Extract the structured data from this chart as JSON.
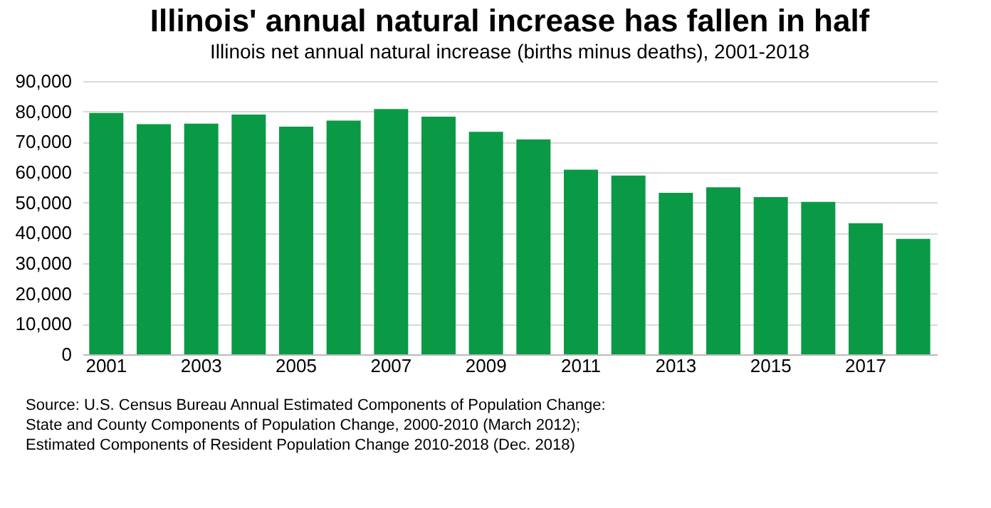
{
  "chart_data": {
    "type": "bar",
    "title": "Illinois' annual natural increase has fallen in half",
    "subtitle": "Illinois net annual natural increase (births minus deaths), 2001-2018",
    "categories": [
      "2001",
      null,
      "2003",
      null,
      "2005",
      null,
      "2007",
      null,
      "2009",
      null,
      "2011",
      null,
      "2013",
      null,
      "2015",
      null,
      "2017",
      null
    ],
    "values": [
      79500,
      75800,
      76000,
      79000,
      75000,
      77000,
      80800,
      78300,
      73300,
      70800,
      60800,
      58900,
      53200,
      55000,
      51800,
      50200,
      43200,
      38000
    ],
    "color": "#0a9a45",
    "ylim": [
      0,
      90000
    ],
    "yticks": [
      {
        "value": 0,
        "label": "0"
      },
      {
        "value": 10000,
        "label": "10,000"
      },
      {
        "value": 20000,
        "label": "20,000"
      },
      {
        "value": 30000,
        "label": "30,000"
      },
      {
        "value": 40000,
        "label": "40,000"
      },
      {
        "value": 50000,
        "label": "50,000"
      },
      {
        "value": 60000,
        "label": "60,000"
      },
      {
        "value": 70000,
        "label": "70,000"
      },
      {
        "value": 80000,
        "label": "80,000"
      },
      {
        "value": 90000,
        "label": "90,000"
      }
    ],
    "grid": "y",
    "annotations": [
      "Source: U.S. Census Bureau Annual Estimated Components of Population Change:",
      "State and County Components of Population Change, 2000-2010 (March 2012);",
      "Estimated Components of Resident Population Change 2010-2018 (Dec. 2018)"
    ]
  }
}
